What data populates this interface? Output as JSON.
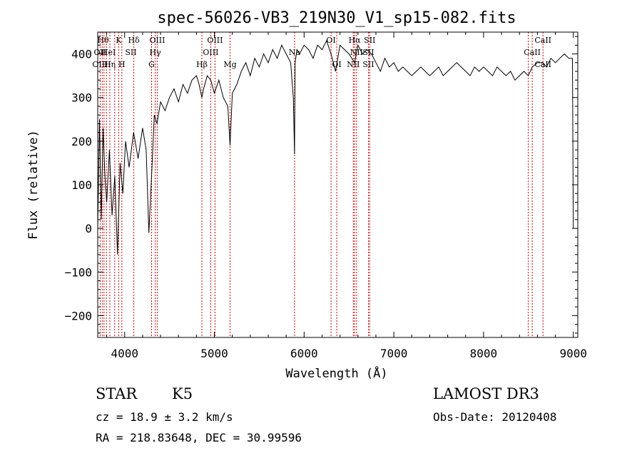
{
  "chart_data": {
    "type": "line",
    "title": "spec-56026-VB3_219N30_V1_sp15-082.fits",
    "xlabel": "Wavelength (Å)",
    "ylabel": "Flux (relative)",
    "xlim": [
      3700,
      9050
    ],
    "ylim": [
      -250,
      450
    ],
    "x_ticks": [
      4000,
      5000,
      6000,
      7000,
      8000,
      9000
    ],
    "x_tick_labels": [
      "4000",
      "5000",
      "6000",
      "7000",
      "8000",
      "9000"
    ],
    "y_ticks": [
      -200,
      -100,
      0,
      100,
      200,
      300,
      400
    ],
    "y_tick_labels": [
      "−200",
      "−100",
      "0",
      "100",
      "200",
      "300",
      "400"
    ],
    "series": [
      {
        "name": "flux",
        "x": [
          3700,
          3720,
          3740,
          3760,
          3780,
          3800,
          3830,
          3860,
          3890,
          3920,
          3950,
          3980,
          4010,
          4050,
          4100,
          4150,
          4200,
          4240,
          4270,
          4300,
          4330,
          4360,
          4400,
          4450,
          4500,
          4550,
          4600,
          4650,
          4700,
          4750,
          4800,
          4830,
          4861,
          4880,
          4920,
          4960,
          5000,
          5050,
          5100,
          5150,
          5175,
          5200,
          5250,
          5300,
          5350,
          5400,
          5450,
          5500,
          5550,
          5600,
          5650,
          5700,
          5750,
          5800,
          5850,
          5880,
          5893,
          5900,
          5920,
          5950,
          6000,
          6050,
          6100,
          6150,
          6200,
          6250,
          6300,
          6350,
          6400,
          6450,
          6500,
          6563,
          6600,
          6650,
          6700,
          6750,
          6800,
          6850,
          6900,
          6950,
          7000,
          7050,
          7100,
          7150,
          7200,
          7250,
          7300,
          7350,
          7400,
          7450,
          7500,
          7550,
          7600,
          7650,
          7700,
          7750,
          7800,
          7850,
          7900,
          7950,
          8000,
          8050,
          8100,
          8150,
          8200,
          8250,
          8300,
          8350,
          8400,
          8450,
          8498,
          8542,
          8600,
          8662,
          8700,
          8750,
          8800,
          8850,
          8900,
          8950,
          8990,
          9000
        ],
        "values": [
          0,
          250,
          20,
          230,
          120,
          60,
          180,
          30,
          120,
          -60,
          150,
          80,
          200,
          140,
          220,
          160,
          230,
          180,
          -10,
          120,
          260,
          240,
          290,
          270,
          300,
          320,
          290,
          330,
          310,
          340,
          350,
          330,
          300,
          320,
          350,
          340,
          310,
          340,
          300,
          280,
          190,
          310,
          330,
          360,
          380,
          350,
          390,
          370,
          400,
          380,
          410,
          390,
          420,
          400,
          380,
          300,
          170,
          380,
          410,
          400,
          420,
          410,
          390,
          420,
          410,
          430,
          400,
          360,
          420,
          410,
          400,
          380,
          420,
          400,
          410,
          400,
          380,
          360,
          390,
          370,
          380,
          360,
          370,
          360,
          350,
          360,
          370,
          360,
          350,
          360,
          370,
          350,
          360,
          370,
          380,
          370,
          360,
          350,
          370,
          360,
          370,
          360,
          350,
          370,
          360,
          350,
          360,
          340,
          350,
          360,
          350,
          370,
          380,
          380,
          370,
          390,
          380,
          390,
          400,
          390,
          390,
          0
        ]
      }
    ],
    "line_marks": [
      3727,
      3750,
      3770,
      3797,
      3835,
      3889,
      3934,
      3969,
      4102,
      4300,
      4341,
      4363,
      4861,
      4959,
      5007,
      5175,
      5893,
      6300,
      6364,
      6548,
      6563,
      6584,
      6717,
      6731,
      8498,
      8542,
      8662
    ],
    "line_labels": [
      {
        "text": "Hθ",
        "wl": 3760,
        "row": 1
      },
      {
        "text": "OII",
        "wl": 3727,
        "row": 2
      },
      {
        "text": "HeI",
        "wl": 3820,
        "row": 2
      },
      {
        "text": "OIII",
        "wl": 3727,
        "row": 3
      },
      {
        "text": "Hη",
        "wl": 3835,
        "row": 3
      },
      {
        "text": "K",
        "wl": 3934,
        "row": 1
      },
      {
        "text": "SII",
        "wl": 4070,
        "row": 2
      },
      {
        "text": "H",
        "wl": 3969,
        "row": 3
      },
      {
        "text": "Hδ",
        "wl": 4102,
        "row": 1
      },
      {
        "text": "OIII",
        "wl": 4363,
        "row": 1
      },
      {
        "text": "Hγ",
        "wl": 4341,
        "row": 2
      },
      {
        "text": "G",
        "wl": 4300,
        "row": 3
      },
      {
        "text": "OIII",
        "wl": 5007,
        "row": 1
      },
      {
        "text": "OIII",
        "wl": 4959,
        "row": 2
      },
      {
        "text": "Hβ",
        "wl": 4861,
        "row": 3
      },
      {
        "text": "Mg",
        "wl": 5175,
        "row": 3
      },
      {
        "text": "Na",
        "wl": 5893,
        "row": 2
      },
      {
        "text": "OI",
        "wl": 6300,
        "row": 1
      },
      {
        "text": "OI",
        "wl": 6364,
        "row": 3
      },
      {
        "text": "Hα",
        "wl": 6563,
        "row": 1
      },
      {
        "text": "NII",
        "wl": 6584,
        "row": 2
      },
      {
        "text": "SII",
        "wl": 6731,
        "row": 1
      },
      {
        "text": "SII",
        "wl": 6717,
        "row": 2
      },
      {
        "text": "NII",
        "wl": 6548,
        "row": 3
      },
      {
        "text": "SII",
        "wl": 6717,
        "row": 3
      },
      {
        "text": "CaII",
        "wl": 8662,
        "row": 1
      },
      {
        "text": "CaII",
        "wl": 8542,
        "row": 2
      },
      {
        "text": "CaII",
        "wl": 8662,
        "row": 3
      }
    ]
  },
  "info": {
    "object_class": "STAR",
    "subclass": "K5",
    "survey": "LAMOST DR3",
    "cz": "cz = 18.9 ± 3.2 km/s",
    "obs_date": "Obs-Date: 20120408",
    "coords": "RA = 218.83648, DEC =  30.99596"
  },
  "colors": {
    "spectrum": "#000000",
    "line_marker": "#cc0000",
    "axis": "#000000",
    "background": "#ffffff"
  }
}
